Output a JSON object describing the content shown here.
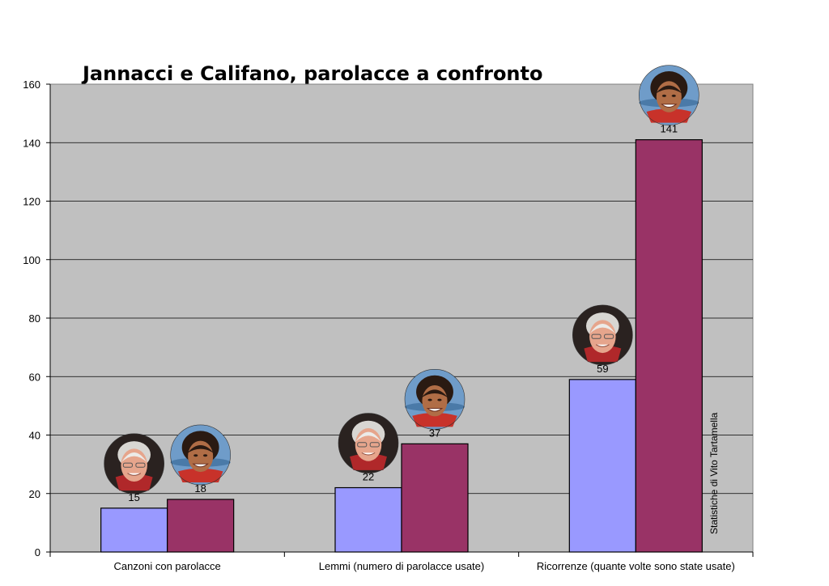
{
  "chart_data": {
    "type": "bar",
    "title": "Jannacci  e Califano, parolacce a confronto",
    "categories": [
      "Canzoni con parolacce",
      "Lemmi (numero di parolacce usate)",
      "Ricorrenze (quante volte sono state usate)"
    ],
    "series": [
      {
        "values": [
          15,
          22,
          59
        ],
        "color": "#9999ff",
        "portrait": "jannacci-portrait-icon"
      },
      {
        "values": [
          18,
          37,
          141
        ],
        "color": "#993366",
        "portrait": "califano-portrait-icon"
      }
    ],
    "ylim": [
      0,
      160
    ],
    "yticks": [
      0,
      20,
      40,
      60,
      80,
      100,
      120,
      140,
      160
    ],
    "grid": true,
    "plot_background": "#c0c0c0",
    "credit": "Statistiche di Vito Tartamella"
  }
}
